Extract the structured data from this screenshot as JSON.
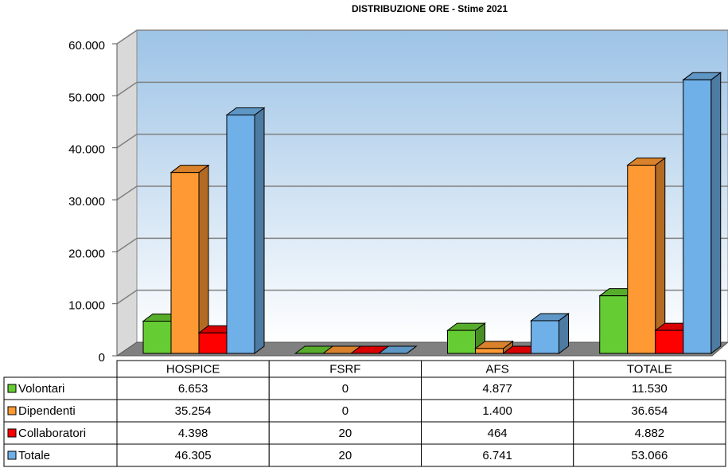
{
  "chart_data": {
    "type": "bar3d",
    "title": "DISTRIBUZIONE ORE - Stime 2021",
    "categories": [
      "HOSPICE",
      "FSRF",
      "AFS",
      "TOTALE"
    ],
    "series": [
      {
        "name": "Volontari",
        "color": "#66cc33",
        "values": [
          6653,
          0,
          4877,
          11530
        ],
        "value_labels": [
          "6.653",
          "0",
          "4.877",
          "11.530"
        ]
      },
      {
        "name": "Dipendenti",
        "color": "#ff9933",
        "values": [
          35254,
          0,
          1400,
          36654
        ],
        "value_labels": [
          "35.254",
          "0",
          "1.400",
          "36.654"
        ]
      },
      {
        "name": "Collaboratori",
        "color": "#ff0000",
        "values": [
          4398,
          20,
          464,
          4882
        ],
        "value_labels": [
          "4.398",
          "20",
          "464",
          "4.882"
        ]
      },
      {
        "name": "Totale",
        "color": "#6fb0e8",
        "values": [
          46305,
          20,
          6741,
          53066
        ],
        "value_labels": [
          "46.305",
          "20",
          "6.741",
          "53.066"
        ]
      }
    ],
    "ylim": [
      0,
      60000
    ],
    "yticks": [
      0,
      {
        "value": 10000,
        "label": "10.000"
      },
      {
        "value": 20000,
        "label": "20.000"
      },
      {
        "value": 30000,
        "label": "30.000"
      },
      {
        "value": 40000,
        "label": "40.000"
      },
      {
        "value": 50000,
        "label": "50.000"
      },
      {
        "value": 60000,
        "label": "60.000"
      }
    ],
    "grid": true
  }
}
